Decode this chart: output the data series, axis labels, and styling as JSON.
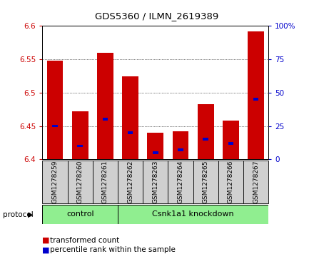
{
  "title": "GDS5360 / ILMN_2619389",
  "samples": [
    "GSM1278259",
    "GSM1278260",
    "GSM1278261",
    "GSM1278262",
    "GSM1278263",
    "GSM1278264",
    "GSM1278265",
    "GSM1278266",
    "GSM1278267"
  ],
  "transformed_counts": [
    6.548,
    6.472,
    6.56,
    6.524,
    6.44,
    6.442,
    6.483,
    6.458,
    6.592
  ],
  "percentile_ranks": [
    25,
    10,
    30,
    20,
    5,
    7,
    15,
    12,
    45
  ],
  "ylim_left": [
    6.4,
    6.6
  ],
  "ylim_right": [
    0,
    100
  ],
  "yticks_left": [
    6.4,
    6.45,
    6.5,
    6.55,
    6.6
  ],
  "yticks_right": [
    0,
    25,
    50,
    75,
    100
  ],
  "bar_base": 6.4,
  "control_indices": [
    0,
    1,
    2
  ],
  "knockdown_indices": [
    3,
    4,
    5,
    6,
    7,
    8
  ],
  "control_label": "control",
  "knockdown_label": "Csnk1a1 knockdown",
  "protocol_label": "protocol",
  "red_color": "#cc0000",
  "blue_color": "#0000cc",
  "green_color": "#90ee90",
  "bar_width": 0.65,
  "blue_bar_width": 0.22,
  "blue_bar_height": 0.004,
  "plot_bg": "#ffffff",
  "sample_box_color": "#d0d0d0",
  "legend_items": [
    "transformed count",
    "percentile rank within the sample"
  ]
}
